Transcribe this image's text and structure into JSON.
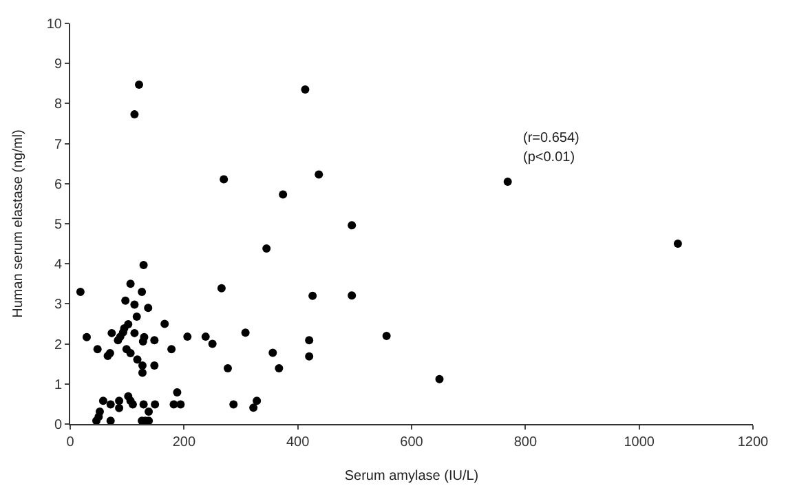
{
  "chart_data": {
    "type": "scatter",
    "xlabel": "Serum amylase (IU/L)",
    "ylabel": "Human serum elastase (ng/ml)",
    "annotations": [
      "(r=0.654)",
      "(p<0.01)"
    ],
    "x": [
      121,
      113,
      413,
      270,
      437,
      374,
      345,
      129,
      18,
      106,
      126,
      266,
      426,
      97,
      113,
      137,
      117,
      166,
      102,
      95,
      93,
      73,
      113,
      88,
      84,
      29,
      130,
      128,
      148,
      206,
      238,
      250,
      308,
      420,
      420,
      48,
      66,
      70,
      99,
      106,
      118,
      127,
      148,
      178,
      127,
      277,
      356,
      367,
      188,
      58,
      86,
      102,
      106,
      71,
      86,
      110,
      129,
      149,
      182,
      194,
      287,
      328,
      322,
      52,
      50,
      46,
      71,
      126,
      132,
      138,
      138,
      495,
      495,
      556,
      649,
      769,
      1068
    ],
    "values": [
      8.47,
      7.73,
      8.35,
      6.11,
      6.23,
      5.73,
      4.38,
      3.97,
      3.3,
      3.5,
      3.3,
      3.39,
      3.2,
      3.08,
      2.98,
      2.9,
      2.68,
      2.5,
      2.49,
      2.39,
      2.29,
      2.27,
      2.27,
      2.18,
      2.09,
      2.17,
      2.17,
      2.06,
      2.09,
      2.18,
      2.18,
      2.0,
      2.28,
      2.09,
      1.69,
      1.87,
      1.7,
      1.77,
      1.87,
      1.77,
      1.61,
      1.46,
      1.46,
      1.87,
      1.28,
      1.39,
      1.78,
      1.39,
      0.79,
      0.58,
      0.58,
      0.69,
      0.58,
      0.49,
      0.4,
      0.49,
      0.49,
      0.49,
      0.49,
      0.49,
      0.49,
      0.58,
      0.41,
      0.31,
      0.18,
      0.08,
      0.08,
      0.08,
      0.08,
      0.08,
      0.31,
      3.21,
      4.96,
      2.2,
      1.12,
      6.05,
      4.5
    ],
    "color": "#000000",
    "marker": "circle",
    "xlim": [
      0,
      1200
    ],
    "xticks": [
      0,
      200,
      400,
      600,
      800,
      1000,
      1200
    ],
    "ylim": [
      0,
      10
    ],
    "yticks": [
      0,
      1,
      2,
      3,
      4,
      5,
      6,
      7,
      8,
      9,
      10
    ]
  }
}
